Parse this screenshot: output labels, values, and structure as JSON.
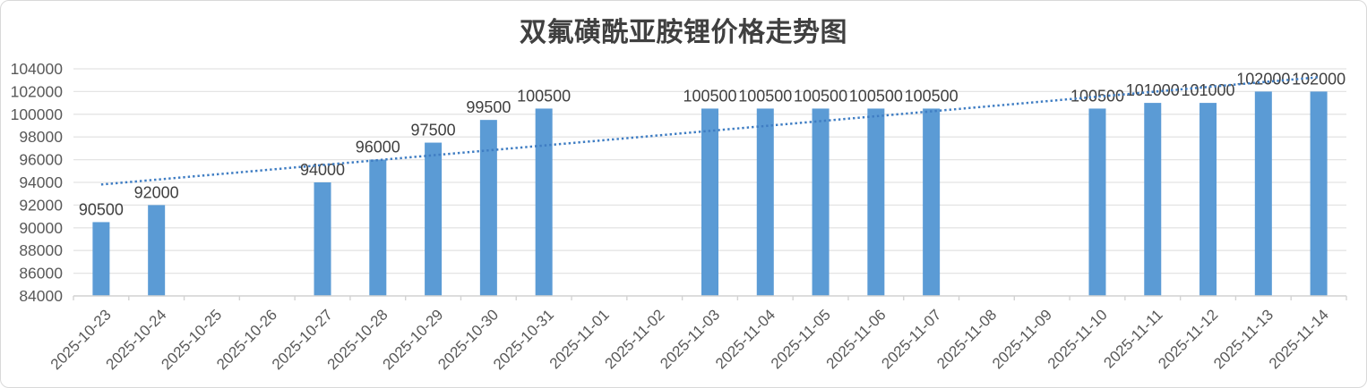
{
  "chart_data": {
    "type": "bar",
    "title": "双氟磺酰亚胺锂价格走势图",
    "xlabel": "",
    "ylabel": "",
    "categories": [
      "2025-10-23",
      "2025-10-24",
      "2025-10-25",
      "2025-10-26",
      "2025-10-27",
      "2025-10-28",
      "2025-10-29",
      "2025-10-30",
      "2025-10-31",
      "2025-11-01",
      "2025-11-02",
      "2025-11-03",
      "2025-11-04",
      "2025-11-05",
      "2025-11-06",
      "2025-11-07",
      "2025-11-08",
      "2025-11-09",
      "2025-11-10",
      "2025-11-11",
      "2025-11-12",
      "2025-11-13",
      "2025-11-14"
    ],
    "values": [
      90500,
      92000,
      null,
      null,
      94000,
      96000,
      97500,
      99500,
      100500,
      null,
      null,
      100500,
      100500,
      100500,
      100500,
      100500,
      null,
      null,
      100500,
      101000,
      101000,
      102000,
      102000
    ],
    "data_labels_visible": true,
    "y_ticks": [
      84000,
      86000,
      88000,
      90000,
      92000,
      94000,
      96000,
      98000,
      100000,
      102000,
      104000
    ],
    "ylim": [
      84000,
      104000
    ],
    "grid": true,
    "legend": "none",
    "trendline": {
      "type": "linear",
      "style": "dotted"
    },
    "colors": {
      "bar": "#5B9BD5",
      "trendline": "#3F7DC3",
      "gridline": "#E4E4E4",
      "axis_line": "#D2D2D2",
      "axis_text": "#595959",
      "data_label_text": "#404040",
      "title_text": "#404040",
      "frame_border": "#D9D9D9"
    }
  }
}
